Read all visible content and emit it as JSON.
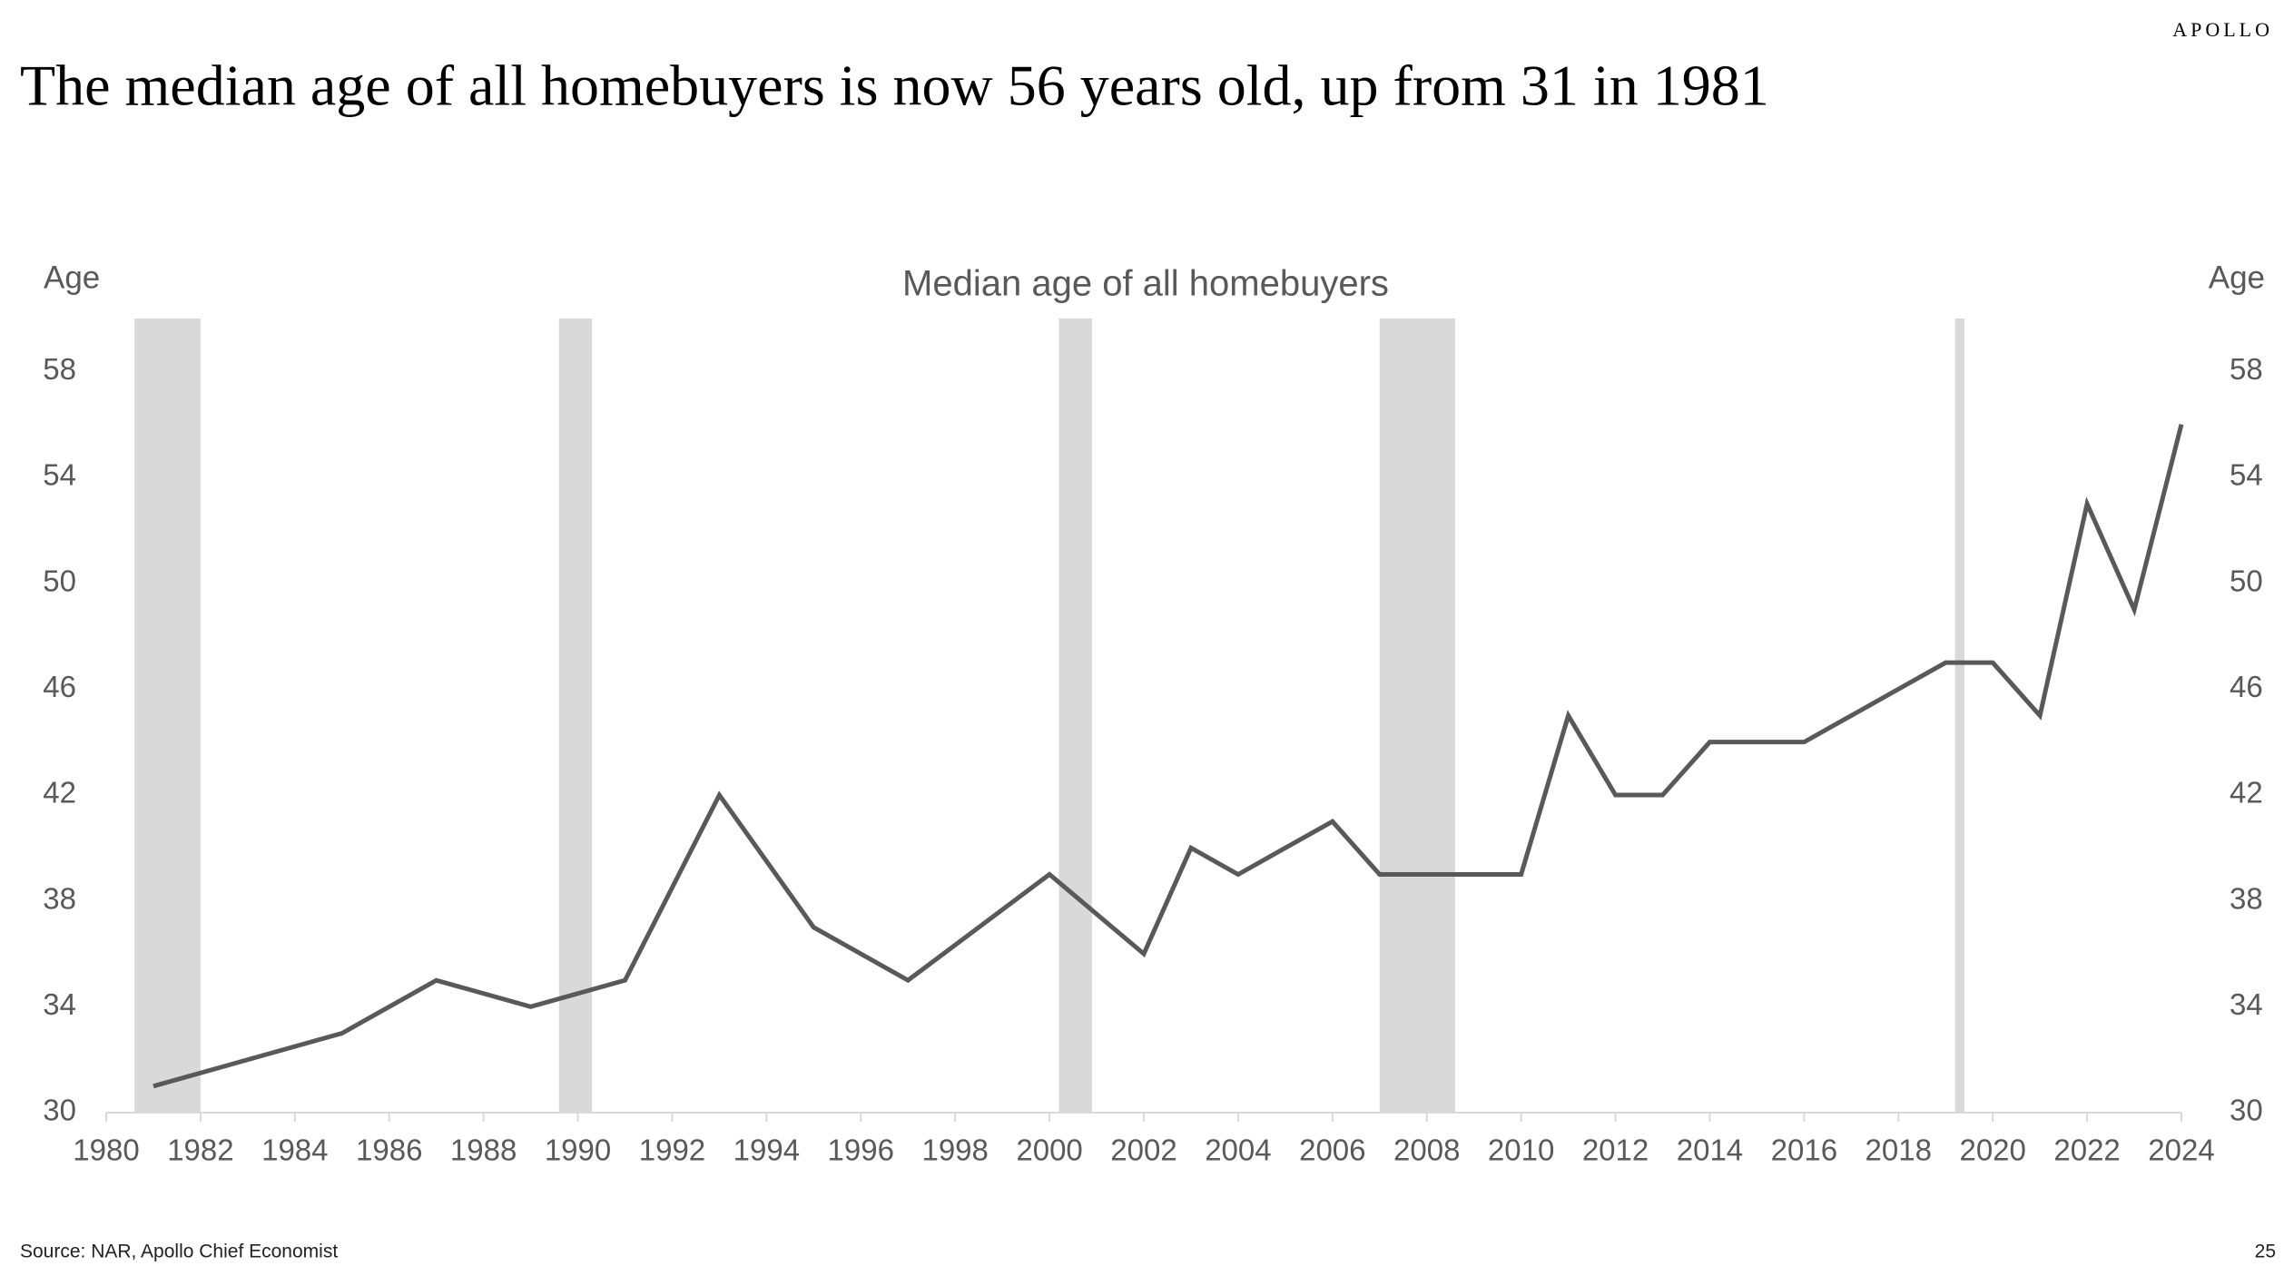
{
  "brand": "APOLLO",
  "page_number": "25",
  "source": "Source: NAR, Apollo Chief Economist",
  "chart_data": {
    "type": "line",
    "headline": "The median age of all homebuyers is now 56 years old, up from 31 in 1981",
    "title": "Median age of all homebuyers",
    "ylabel": "Age",
    "y2label": "Age",
    "x": [
      1981,
      1985,
      1987,
      1989,
      1991,
      1993,
      1995,
      1997,
      2000,
      2002,
      2003,
      2004,
      2006,
      2007,
      2010,
      2011,
      2012,
      2013,
      2014,
      2016,
      2019,
      2020,
      2021,
      2022,
      2023,
      2024
    ],
    "values": [
      31,
      33,
      35,
      34,
      35,
      42,
      37,
      35,
      39,
      36,
      40,
      39,
      41,
      39,
      39,
      45,
      42,
      42,
      44,
      44,
      47,
      47,
      45,
      53,
      49,
      56
    ],
    "color": "#595959",
    "recessions": [
      [
        1980.6,
        1982.0
      ],
      [
        1989.6,
        1990.3
      ],
      [
        2000.2,
        2000.9
      ],
      [
        2007.0,
        2008.6
      ],
      [
        2019.2,
        2019.4
      ]
    ],
    "recession_color": "#d9d9d9",
    "xlim": [
      1980,
      2024
    ],
    "xticks": [
      1980,
      1982,
      1984,
      1986,
      1988,
      1990,
      1992,
      1994,
      1996,
      1998,
      2000,
      2002,
      2004,
      2006,
      2008,
      2010,
      2012,
      2014,
      2016,
      2018,
      2020,
      2022,
      2024
    ],
    "ylim": [
      30,
      60
    ],
    "yticks": [
      30,
      34,
      38,
      42,
      46,
      50,
      54,
      58
    ],
    "y2lim": [
      30,
      60
    ],
    "y2ticks": [
      30,
      34,
      38,
      42,
      46,
      50,
      54,
      58
    ],
    "grid": false
  }
}
